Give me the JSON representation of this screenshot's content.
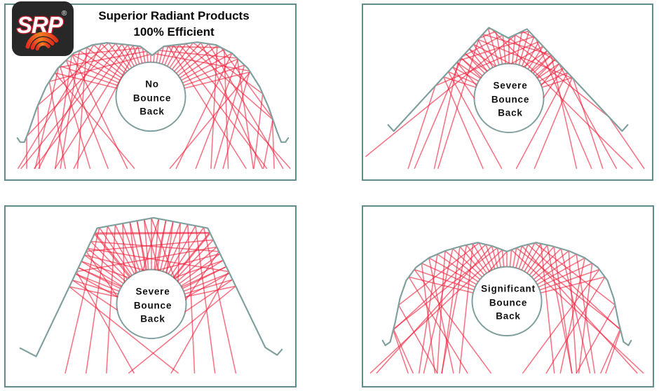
{
  "title": {
    "line1": "Superior Radiant Products",
    "line2": "100% Efficient"
  },
  "logo": {
    "text": "SRP",
    "registered": "®"
  },
  "panels": [
    {
      "label": [
        "No",
        "Bounce",
        "Back"
      ]
    },
    {
      "label": [
        "Severe",
        "Bounce",
        "Back"
      ]
    },
    {
      "label": [
        "Severe",
        "Bounce",
        "Back"
      ]
    },
    {
      "label": [
        "Significant",
        "Bounce",
        "Back"
      ]
    }
  ],
  "colors": {
    "panel_border": "#5F8D8E",
    "reflector_outline": "#7FA09E",
    "ray_red": "#F0213C",
    "text_black": "#0A0A0A",
    "logo_background": "#282828",
    "logo_letter_outline": "#C4202E",
    "logo_arc_red": "#E0301E",
    "logo_arc_orange": "#F58220"
  }
}
